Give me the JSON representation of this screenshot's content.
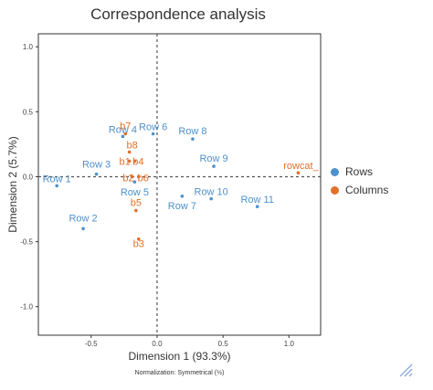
{
  "chart_data": {
    "type": "scatter",
    "title": "Correspondence analysis",
    "xlabel": "Dimension 1 (93.3%)",
    "ylabel": "Dimension 2 (5.7%)",
    "note": "Normalization: Symmetrical (½)",
    "xlim": [
      -0.9,
      1.24
    ],
    "ylim": [
      -1.22,
      1.1
    ],
    "xticks": [
      -0.5,
      0,
      0.5,
      1
    ],
    "yticks": [
      1,
      0.5,
      0,
      -0.5,
      -1
    ],
    "xtick_labels": [
      "-0.5",
      "0.0",
      "0.5",
      "1.0"
    ],
    "ytick_labels": [
      "1.0",
      "0.5",
      "0.0",
      "-0.5",
      "-1.0"
    ],
    "legend_position": "right",
    "series": [
      {
        "name": "Rows",
        "color": "#4e91cc",
        "points": [
          {
            "label": "Row 1",
            "x": -0.76,
            "y": -0.07
          },
          {
            "label": "Row 2",
            "x": -0.56,
            "y": -0.4
          },
          {
            "label": "Row 3",
            "x": -0.46,
            "y": 0.02
          },
          {
            "label": "Row 4",
            "x": -0.26,
            "y": 0.31
          },
          {
            "label": "Row 5",
            "x": -0.17,
            "y": -0.04
          },
          {
            "label": "Row 6",
            "x": -0.03,
            "y": 0.33
          },
          {
            "label": "Row 7",
            "x": 0.19,
            "y": -0.15
          },
          {
            "label": "Row 8",
            "x": 0.27,
            "y": 0.29
          },
          {
            "label": "Row 9",
            "x": 0.43,
            "y": 0.08
          },
          {
            "label": "Row 10",
            "x": 0.41,
            "y": -0.17
          },
          {
            "label": "Row 11",
            "x": 0.76,
            "y": -0.23
          }
        ]
      },
      {
        "name": "Columns",
        "color": "#e0712c",
        "points": [
          {
            "label": "b7",
            "x": -0.24,
            "y": 0.33
          },
          {
            "label": "b8",
            "x": -0.21,
            "y": 0.19
          },
          {
            "label": "b1",
            "x": -0.21,
            "y": 0.12
          },
          {
            "label": "b4",
            "x": -0.17,
            "y": 0.12
          },
          {
            "label": "b2",
            "x": -0.19,
            "y": 0.0
          },
          {
            "label": "b6",
            "x": -0.14,
            "y": 0.0
          },
          {
            "label": "b5",
            "x": -0.16,
            "y": -0.26
          },
          {
            "label": "b3",
            "x": -0.14,
            "y": -0.48
          },
          {
            "label": "rowcat_",
            "x": 1.07,
            "y": 0.03
          }
        ]
      }
    ]
  },
  "legend": {
    "items": [
      {
        "label": "Rows",
        "color": "#4e91cc"
      },
      {
        "label": "Columns",
        "color": "#e0712c"
      }
    ]
  }
}
